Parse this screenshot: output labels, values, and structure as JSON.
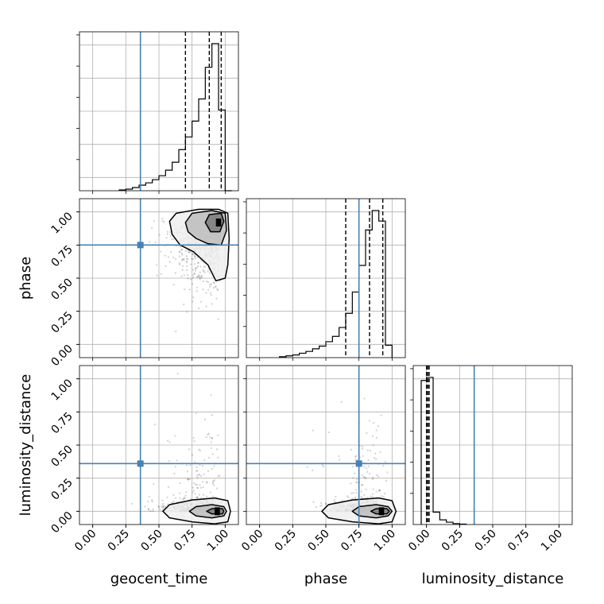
{
  "chart_data": {
    "type": "corner",
    "parameters": [
      "geocent_time",
      "phase",
      "luminosity_distance"
    ],
    "tick_labels": [
      "0.00",
      "0.25",
      "0.50",
      "0.75",
      "1.00"
    ],
    "xlim": [
      -0.1,
      1.1
    ],
    "ylim_2d": [
      -0.1,
      1.1
    ],
    "grid": true,
    "truths": {
      "geocent_time": 0.36,
      "phase": 0.75,
      "luminosity_distance": 0.36
    },
    "truth_color": "#4682b4",
    "quantiles": {
      "geocent_time": [
        0.7,
        0.88,
        0.97
      ],
      "phase": [
        0.65,
        0.83,
        0.93
      ],
      "luminosity_distance": [
        0.0,
        0.01,
        0.02
      ]
    },
    "histograms": [
      {
        "parameter": "geocent_time",
        "bin_edges": [
          0.2,
          0.25,
          0.3,
          0.35,
          0.4,
          0.45,
          0.5,
          0.55,
          0.6,
          0.65,
          0.7,
          0.75,
          0.8,
          0.85,
          0.9,
          0.95,
          1.0,
          1.05
        ],
        "counts": [
          0.005,
          0.01,
          0.02,
          0.035,
          0.05,
          0.07,
          0.095,
          0.13,
          0.18,
          0.26,
          0.34,
          0.44,
          0.58,
          0.78,
          0.93,
          0.51,
          0.0
        ]
      },
      {
        "parameter": "phase",
        "bin_edges": [
          0.15,
          0.2,
          0.25,
          0.3,
          0.35,
          0.4,
          0.45,
          0.5,
          0.55,
          0.6,
          0.65,
          0.7,
          0.75,
          0.8,
          0.85,
          0.9,
          0.95,
          1.0
        ],
        "counts": [
          0.005,
          0.01,
          0.015,
          0.025,
          0.035,
          0.05,
          0.065,
          0.09,
          0.12,
          0.17,
          0.25,
          0.37,
          0.52,
          0.72,
          0.83,
          0.77,
          0.07
        ]
      },
      {
        "parameter": "luminosity_distance",
        "bin_edges": [
          -0.04,
          0.0,
          0.05,
          0.1,
          0.15,
          0.2,
          0.25,
          0.3
        ],
        "counts": [
          0.93,
          0.95,
          0.08,
          0.03,
          0.015,
          0.006,
          0.003
        ]
      }
    ],
    "contours_2d": [
      {
        "x": "geocent_time",
        "y": "phase",
        "peak": [
          0.95,
          0.92
        ],
        "levels": [
          [
            [
              0.58,
              0.93
            ],
            [
              0.63,
              0.99
            ],
            [
              0.8,
              1.02
            ],
            [
              0.95,
              1.02
            ],
            [
              1.02,
              0.99
            ],
            [
              1.03,
              0.8
            ],
            [
              1.02,
              0.6
            ],
            [
              1.0,
              0.5
            ],
            [
              0.93,
              0.48
            ],
            [
              0.87,
              0.6
            ],
            [
              0.76,
              0.7
            ],
            [
              0.66,
              0.75
            ],
            [
              0.6,
              0.83
            ]
          ],
          [
            [
              0.7,
              0.92
            ],
            [
              0.75,
              0.99
            ],
            [
              0.9,
              1.01
            ],
            [
              1.0,
              0.99
            ],
            [
              1.01,
              0.86
            ],
            [
              0.97,
              0.75
            ],
            [
              0.87,
              0.76
            ],
            [
              0.78,
              0.8
            ],
            [
              0.72,
              0.85
            ]
          ],
          [
            [
              0.85,
              0.92
            ],
            [
              0.88,
              0.98
            ],
            [
              0.97,
              0.99
            ],
            [
              0.99,
              0.93
            ],
            [
              0.96,
              0.85
            ],
            [
              0.89,
              0.85
            ]
          ]
        ]
      },
      {
        "x": "geocent_time",
        "y": "luminosity_distance",
        "peak": [
          0.94,
          0.0
        ],
        "levels": [
          [
            [
              0.53,
              0.0
            ],
            [
              0.58,
              0.05
            ],
            [
              0.75,
              0.085
            ],
            [
              0.92,
              0.1
            ],
            [
              1.02,
              0.08
            ],
            [
              1.04,
              0.0
            ],
            [
              1.02,
              -0.08
            ],
            [
              0.92,
              -0.095
            ],
            [
              0.75,
              -0.08
            ],
            [
              0.58,
              -0.05
            ]
          ],
          [
            [
              0.73,
              0.0
            ],
            [
              0.78,
              0.035
            ],
            [
              0.9,
              0.05
            ],
            [
              0.99,
              0.035
            ],
            [
              1.01,
              0.0
            ],
            [
              0.99,
              -0.035
            ],
            [
              0.9,
              -0.05
            ],
            [
              0.78,
              -0.035
            ]
          ],
          [
            [
              0.86,
              0.0
            ],
            [
              0.9,
              0.02
            ],
            [
              0.98,
              0.02
            ],
            [
              0.99,
              0.0
            ],
            [
              0.98,
              -0.02
            ],
            [
              0.9,
              -0.02
            ]
          ]
        ]
      },
      {
        "x": "phase",
        "y": "luminosity_distance",
        "peak": [
          0.92,
          0.0
        ],
        "levels": [
          [
            [
              0.47,
              0.0
            ],
            [
              0.52,
              0.05
            ],
            [
              0.7,
              0.085
            ],
            [
              0.9,
              0.1
            ],
            [
              1.0,
              0.08
            ],
            [
              1.03,
              0.0
            ],
            [
              1.0,
              -0.08
            ],
            [
              0.9,
              -0.095
            ],
            [
              0.7,
              -0.08
            ],
            [
              0.52,
              -0.05
            ]
          ],
          [
            [
              0.7,
              0.0
            ],
            [
              0.75,
              0.035
            ],
            [
              0.88,
              0.05
            ],
            [
              0.97,
              0.035
            ],
            [
              1.0,
              0.0
            ],
            [
              0.97,
              -0.035
            ],
            [
              0.88,
              -0.05
            ],
            [
              0.75,
              -0.035
            ]
          ],
          [
            [
              0.84,
              0.0
            ],
            [
              0.88,
              0.02
            ],
            [
              0.96,
              0.02
            ],
            [
              0.98,
              0.0
            ],
            [
              0.96,
              -0.02
            ],
            [
              0.88,
              -0.02
            ]
          ]
        ]
      }
    ]
  }
}
